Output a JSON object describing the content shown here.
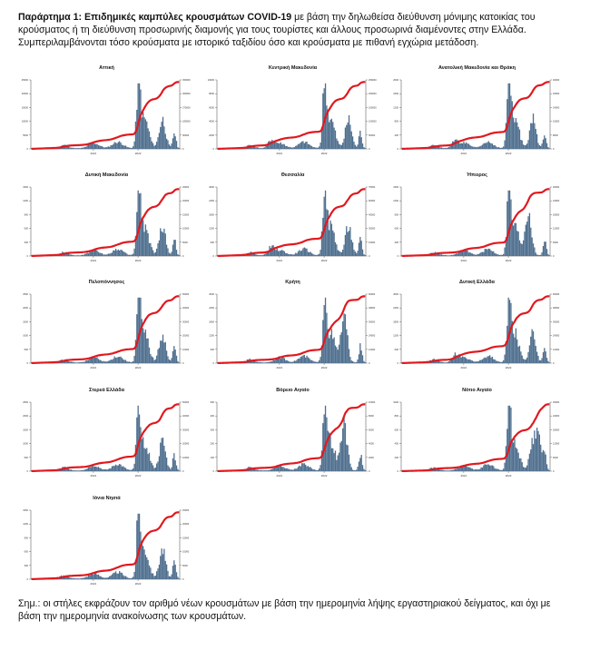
{
  "header": {
    "title_bold": "Παράρτημα 1:  Επιδημικές καμπύλες κρουσμάτων COVID-19",
    "title_rest": " με βάση την δηλωθείσα διεύθυνση μόνιμης κατοικίας του κρούσματος ή τη διεύθυνση προσωρινής διαμονής για τους τουρίστες και άλλους προσωρινά διαμένοντες στην Ελλάδα. Συμπεριλαμβάνονται τόσο κρούσματα με ιστορικό ταξιδίου όσο και κρούσματα με πιθανή εγχώρια μετάδοση."
  },
  "footer": {
    "note": "Σημ.: οι στήλες εκφράζουν τον αριθμό νέων κρουσμάτων με βάση την ημερομηνία λήψης εργαστηριακού δείγματος, και όχι με βάση την ημερομηνία ανακοίνωσης των κρουσμάτων."
  },
  "colors": {
    "bars": "#4e6e8e",
    "line": "#e0191f",
    "axis": "#444444"
  },
  "chart_data": [
    {
      "type": "bar",
      "region": "Αττική",
      "left_max": 25000,
      "right_max": 450000,
      "x_ticks": [
        "2021",
        "2022"
      ],
      "line_end": 440000,
      "peak": 24000,
      "shape": "a"
    },
    {
      "type": "bar",
      "region": "Κεντρική Μακεδονία",
      "left_max": 10000,
      "right_max": 250000,
      "x_ticks": [
        "2021",
        "2022"
      ],
      "line_end": 230000,
      "peak": 9000,
      "shape": "b"
    },
    {
      "type": "bar",
      "region": "Ανατολική Μακεδονία και Θράκη",
      "left_max": 2000,
      "right_max": 40000,
      "x_ticks": [
        "2021",
        "2022"
      ],
      "line_end": 38000,
      "peak": 1800,
      "shape": "b"
    },
    {
      "type": "bar",
      "region": "Δυτική Μακεδονία",
      "left_max": 1500,
      "right_max": 25000,
      "x_ticks": [
        "2021",
        "2022"
      ],
      "line_end": 24000,
      "peak": 1300,
      "shape": "a"
    },
    {
      "type": "bar",
      "region": "Θεσσαλία",
      "left_max": 3000,
      "right_max": 75000,
      "x_ticks": [
        "2021",
        "2022"
      ],
      "line_end": 70000,
      "peak": 2800,
      "shape": "b"
    },
    {
      "type": "bar",
      "region": "Ήπειρος",
      "left_max": 1500,
      "right_max": 30000,
      "x_ticks": [
        "2021",
        "2022"
      ],
      "line_end": 28000,
      "peak": 1400,
      "shape": "c"
    },
    {
      "type": "bar",
      "region": "Πελοπόννησος",
      "left_max": 2500,
      "right_max": 50000,
      "x_ticks": [
        "2021",
        "2022"
      ],
      "line_end": 45000,
      "peak": 2200,
      "shape": "a"
    },
    {
      "type": "bar",
      "region": "Κρήτη",
      "left_max": 3000,
      "right_max": 60000,
      "x_ticks": [
        "2021",
        "2022"
      ],
      "line_end": 55000,
      "peak": 2700,
      "shape": "c"
    },
    {
      "type": "bar",
      "region": "Δυτική Ελλάδα",
      "left_max": 3000,
      "right_max": 60000,
      "x_ticks": [
        "2021",
        "2022"
      ],
      "line_end": 58000,
      "peak": 2600,
      "shape": "b"
    },
    {
      "type": "bar",
      "region": "Στερεά Ελλάδα",
      "left_max": 2500,
      "right_max": 50000,
      "x_ticks": [
        "2021",
        "2022"
      ],
      "line_end": 48000,
      "peak": 2300,
      "shape": "a"
    },
    {
      "type": "bar",
      "region": "Βόρειο Αιγαίο",
      "left_max": 500,
      "right_max": 10000,
      "x_ticks": [
        "2021",
        "2022"
      ],
      "line_end": 9500,
      "peak": 450,
      "shape": "c"
    },
    {
      "type": "bar",
      "region": "Νότιο Αιγαίο",
      "left_max": 1000,
      "right_max": 30000,
      "x_ticks": [
        "2021",
        "2022"
      ],
      "line_end": 28000,
      "peak": 900,
      "shape": "d"
    },
    {
      "type": "bar",
      "region": "Ιόνια Νησιά",
      "left_max": 1500,
      "right_max": 25000,
      "x_ticks": [
        "2021",
        "2022"
      ],
      "line_end": 24000,
      "peak": 1400,
      "shape": "a"
    }
  ]
}
